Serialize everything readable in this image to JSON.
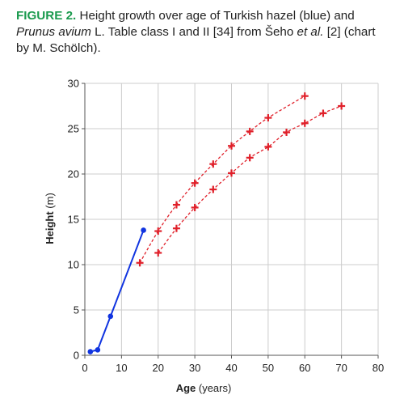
{
  "caption": {
    "label": "FIGURE 2.",
    "part1": " Height growth over age of Turkish hazel (blue) and ",
    "italic1": "Prunus avium",
    "part2": " L. Table class I and II [34] from Šeho ",
    "italic2": "et al.",
    "part3": " [2] (chart by M. Schölch)."
  },
  "colors": {
    "caption_label": "#1a9a4e",
    "blue_series": "#1034e0",
    "red_series": "#e0202a",
    "grid": "#cccccc"
  },
  "chart_data": {
    "type": "scatter",
    "xlabel_bold": "Age",
    "xlabel_rest": " (years)",
    "ylabel_bold": "Height",
    "ylabel_rest": " (m)",
    "xlim": [
      0,
      80
    ],
    "ylim": [
      0,
      30
    ],
    "xticks": [
      0,
      10,
      20,
      30,
      40,
      50,
      60,
      70,
      80
    ],
    "yticks": [
      0,
      5,
      10,
      15,
      20,
      25,
      30
    ],
    "grid": true,
    "series": [
      {
        "style": "solid-line-circle",
        "color": "#1034e0",
        "points": [
          [
            1.5,
            0.4
          ],
          [
            3.5,
            0.6
          ],
          [
            7,
            4.3
          ],
          [
            16,
            13.8
          ]
        ]
      },
      {
        "style": "dashed-line-plus",
        "color": "#e0202a",
        "points": [
          [
            15,
            10.2
          ],
          [
            20,
            13.7
          ],
          [
            25,
            16.6
          ],
          [
            30,
            19.0
          ],
          [
            35,
            21.1
          ],
          [
            40,
            23.1
          ],
          [
            45,
            24.7
          ],
          [
            50,
            26.2
          ],
          [
            60,
            28.6
          ]
        ]
      },
      {
        "style": "dashed-line-plus",
        "color": "#e0202a",
        "points": [
          [
            20,
            11.3
          ],
          [
            25,
            14.0
          ],
          [
            30,
            16.3
          ],
          [
            35,
            18.3
          ],
          [
            40,
            20.1
          ],
          [
            45,
            21.8
          ],
          [
            50,
            23.0
          ],
          [
            55,
            24.6
          ],
          [
            60,
            25.6
          ],
          [
            65,
            26.7
          ],
          [
            70,
            27.5
          ]
        ]
      }
    ]
  }
}
